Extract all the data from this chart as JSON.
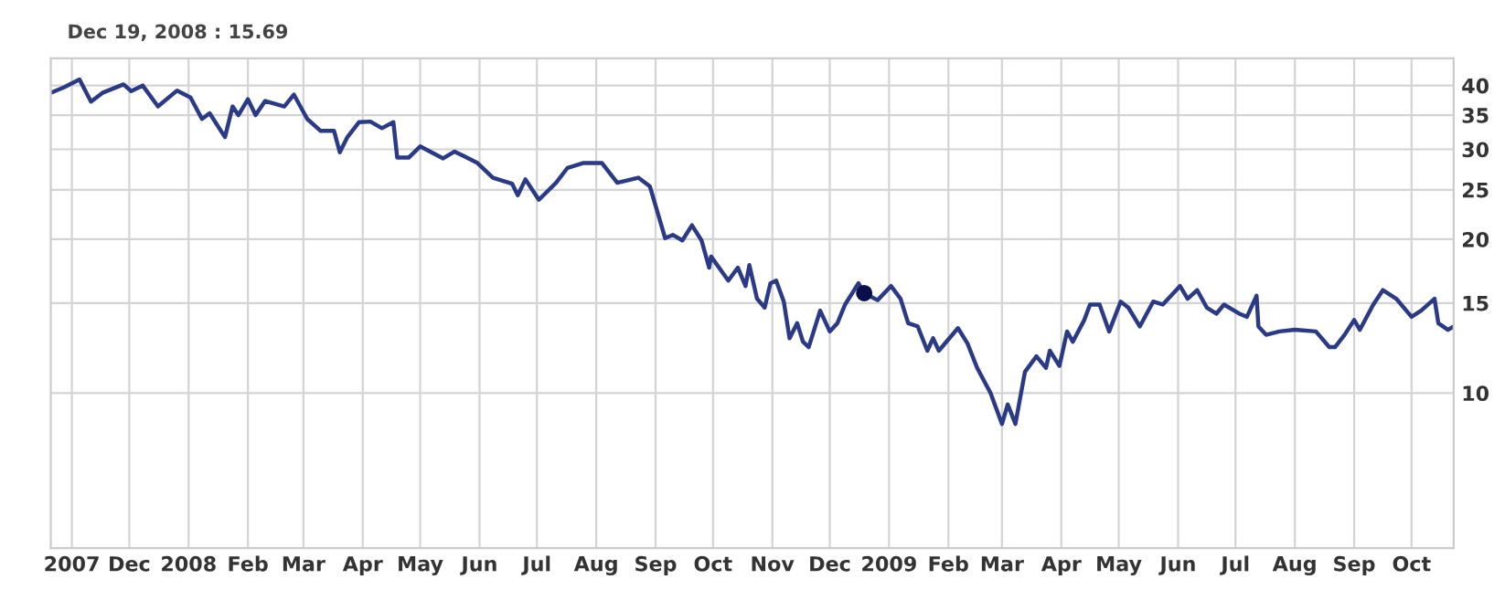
{
  "chart_data": {
    "type": "line",
    "x": [
      "2007-10-21",
      "2007-10-28",
      "2007-11-05",
      "2007-11-11",
      "2007-11-17",
      "2007-11-28",
      "2007-12-02",
      "2007-12-08",
      "2007-12-16",
      "2007-12-26",
      "2008-01-02",
      "2008-01-08",
      "2008-01-12",
      "2008-01-20",
      "2008-01-24",
      "2008-01-27",
      "2008-02-01",
      "2008-02-05",
      "2008-02-10",
      "2008-02-20",
      "2008-02-25",
      "2008-03-03",
      "2008-03-10",
      "2008-03-17",
      "2008-03-20",
      "2008-03-24",
      "2008-03-30",
      "2008-04-05",
      "2008-04-11",
      "2008-04-17",
      "2008-04-19",
      "2008-04-25",
      "2008-05-01",
      "2008-05-13",
      "2008-05-19",
      "2008-05-31",
      "2008-06-08",
      "2008-06-18",
      "2008-06-21",
      "2008-06-25",
      "2008-07-02",
      "2008-07-11",
      "2008-07-17",
      "2008-07-25",
      "2008-08-04",
      "2008-08-12",
      "2008-08-23",
      "2008-08-29",
      "2008-09-06",
      "2008-09-10",
      "2008-09-15",
      "2008-09-20",
      "2008-09-25",
      "2008-09-29",
      "2008-09-30",
      "2008-10-09",
      "2008-10-14",
      "2008-10-18",
      "2008-10-20",
      "2008-10-24",
      "2008-10-28",
      "2008-10-31",
      "2008-11-03",
      "2008-11-07",
      "2008-11-10",
      "2008-11-14",
      "2008-11-17",
      "2008-11-20",
      "2008-11-26",
      "2008-12-01",
      "2008-12-05",
      "2008-12-09",
      "2008-12-16",
      "2008-12-19",
      "2008-12-26",
      "2009-01-02",
      "2009-01-07",
      "2009-01-11",
      "2009-01-16",
      "2009-01-21",
      "2009-01-24",
      "2009-01-27",
      "2009-02-06",
      "2009-02-11",
      "2009-02-16",
      "2009-02-23",
      "2009-03-01",
      "2009-03-04",
      "2009-03-08",
      "2009-03-13",
      "2009-03-19",
      "2009-03-24",
      "2009-03-26",
      "2009-03-31",
      "2009-04-04",
      "2009-04-07",
      "2009-04-13",
      "2009-04-16",
      "2009-04-21",
      "2009-04-26",
      "2009-05-02",
      "2009-05-06",
      "2009-05-12",
      "2009-05-19",
      "2009-05-24",
      "2009-06-02",
      "2009-06-06",
      "2009-06-11",
      "2009-06-16",
      "2009-06-21",
      "2009-06-25",
      "2009-07-03",
      "2009-07-07",
      "2009-07-12",
      "2009-07-13",
      "2009-07-17",
      "2009-07-24",
      "2009-08-01",
      "2009-08-12",
      "2009-08-19",
      "2009-08-22",
      "2009-08-27",
      "2009-09-01",
      "2009-09-04",
      "2009-09-11",
      "2009-09-16",
      "2009-09-23",
      "2009-10-01",
      "2009-10-06",
      "2009-10-13",
      "2009-10-15",
      "2009-10-20",
      "2009-10-23"
    ],
    "series": [
      {
        "color": "#2b3a87",
        "values": [
          38.7,
          39.7,
          41.1,
          37.2,
          38.7,
          40.2,
          39.0,
          40.0,
          36.4,
          39.1,
          37.9,
          34.4,
          35.3,
          31.7,
          36.4,
          35.0,
          37.6,
          35.0,
          37.3,
          36.4,
          38.4,
          34.4,
          32.6,
          32.6,
          29.6,
          31.7,
          33.9,
          34.0,
          33.0,
          33.9,
          28.9,
          28.9,
          30.4,
          28.8,
          29.7,
          28.2,
          26.4,
          25.7,
          24.4,
          26.2,
          23.9,
          25.8,
          27.6,
          28.2,
          28.2,
          25.8,
          26.4,
          25.4,
          20.1,
          20.4,
          19.9,
          21.3,
          19.9,
          17.6,
          18.5,
          16.6,
          17.6,
          16.2,
          17.8,
          15.3,
          14.7,
          16.4,
          16.6,
          15.1,
          12.8,
          13.7,
          12.6,
          12.3,
          14.5,
          13.2,
          13.7,
          14.9,
          16.4,
          15.69,
          15.2,
          16.2,
          15.3,
          13.7,
          13.5,
          12.1,
          12.8,
          12.1,
          13.4,
          12.5,
          11.2,
          10.0,
          8.7,
          9.5,
          8.7,
          11.0,
          11.8,
          11.2,
          12.1,
          11.3,
          13.2,
          12.6,
          13.9,
          14.9,
          14.9,
          13.2,
          15.1,
          14.7,
          13.5,
          15.1,
          14.9,
          16.2,
          15.3,
          15.9,
          14.7,
          14.3,
          14.9,
          14.3,
          14.1,
          15.5,
          13.5,
          13.0,
          13.2,
          13.3,
          13.2,
          12.3,
          12.3,
          13.0,
          13.9,
          13.3,
          14.9,
          15.9,
          15.3,
          14.1,
          14.5,
          15.3,
          13.7,
          13.3,
          13.5
        ]
      },
      {
        "type": "scatter",
        "color": "#0a0f4a",
        "x": [
          "2008-12-19"
        ],
        "values": [
          15.69
        ]
      }
    ],
    "log": "y",
    "xlim": [
      "2007-10-21",
      "2009-10-23"
    ],
    "xticks": [
      {
        "value": "2007-11-01",
        "label": "2007"
      },
      {
        "value": "2007-12-01",
        "label": "Dec"
      },
      {
        "value": "2008-01-01",
        "label": "2008"
      },
      {
        "value": "2008-02-01",
        "label": "Feb"
      },
      {
        "value": "2008-03-01",
        "label": "Mar"
      },
      {
        "value": "2008-04-01",
        "label": "Apr"
      },
      {
        "value": "2008-05-01",
        "label": "May"
      },
      {
        "value": "2008-06-01",
        "label": "Jun"
      },
      {
        "value": "2008-07-01",
        "label": "Jul"
      },
      {
        "value": "2008-08-01",
        "label": "Aug"
      },
      {
        "value": "2008-09-01",
        "label": "Sep"
      },
      {
        "value": "2008-10-01",
        "label": "Oct"
      },
      {
        "value": "2008-11-01",
        "label": "Nov"
      },
      {
        "value": "2008-12-01",
        "label": "Dec"
      },
      {
        "value": "2009-01-01",
        "label": "2009"
      },
      {
        "value": "2009-02-01",
        "label": "Feb"
      },
      {
        "value": "2009-03-01",
        "label": "Mar"
      },
      {
        "value": "2009-04-01",
        "label": "Apr"
      },
      {
        "value": "2009-05-01",
        "label": "May"
      },
      {
        "value": "2009-06-01",
        "label": "Jun"
      },
      {
        "value": "2009-07-01",
        "label": "Jul"
      },
      {
        "value": "2009-08-01",
        "label": "Aug"
      },
      {
        "value": "2009-09-01",
        "label": "Sep"
      },
      {
        "value": "2009-10-01",
        "label": "Oct"
      }
    ],
    "ylim": [
      4.97,
      45.2
    ],
    "yticks": [
      10,
      15,
      20,
      25,
      30,
      35,
      40
    ],
    "grid": true,
    "annotations": [
      "Dec 19, 2008 : 15.69"
    ]
  }
}
